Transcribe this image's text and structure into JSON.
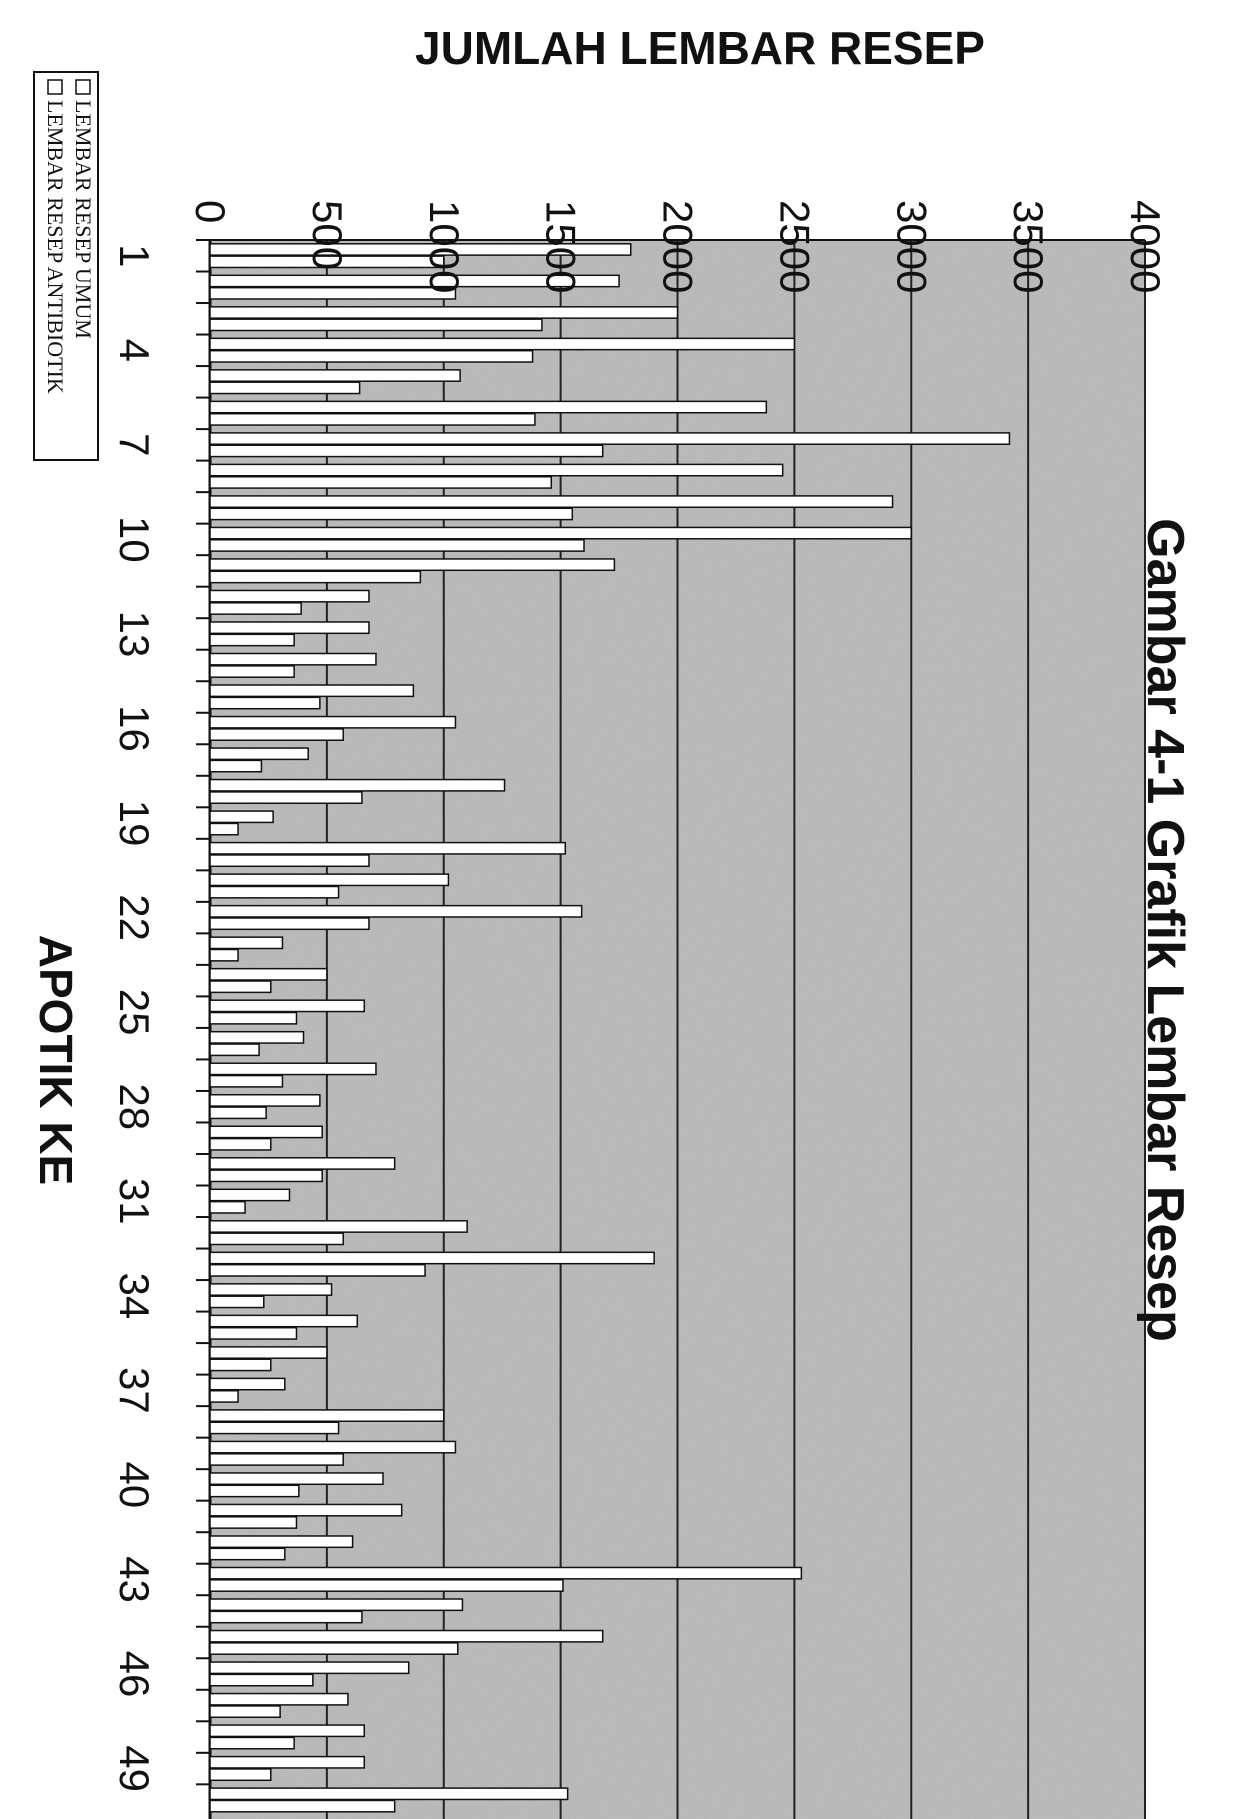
{
  "chart_data": {
    "type": "bar",
    "orientation": "vertical",
    "title": "Gambar 4-1 Grafik Lembar Resep",
    "xlabel": "APOTIK KE",
    "ylabel": "JUMLAH LEMBAR RESEP",
    "ylim": [
      0,
      4000
    ],
    "yticks": [
      "0",
      "500",
      "1000",
      "1500",
      "2000",
      "2500",
      "3000",
      "3500",
      "4000"
    ],
    "xtick_labels": [
      "1",
      "4",
      "7",
      "10",
      "13",
      "16",
      "19",
      "22",
      "25",
      "28",
      "31",
      "34",
      "37",
      "40",
      "43",
      "46",
      "49"
    ],
    "grid": true,
    "legend_position": "top-left",
    "categories": [
      "1",
      "2",
      "3",
      "4",
      "5",
      "6",
      "7",
      "8",
      "9",
      "10",
      "11",
      "12",
      "13",
      "14",
      "15",
      "16",
      "17",
      "18",
      "19",
      "20",
      "21",
      "22",
      "23",
      "24",
      "25",
      "26",
      "27",
      "28",
      "29",
      "30",
      "31",
      "32",
      "33",
      "34",
      "35",
      "36",
      "37",
      "38",
      "39",
      "40",
      "41",
      "42",
      "43",
      "44",
      "45",
      "46",
      "47",
      "48",
      "49",
      "50"
    ],
    "series": [
      {
        "name": "LEMBAR RESEP UMUM",
        "values": [
          1800,
          1750,
          2000,
          2500,
          1070,
          2380,
          3420,
          2450,
          2920,
          3000,
          1730,
          680,
          680,
          710,
          870,
          1050,
          420,
          1260,
          270,
          1520,
          1020,
          1590,
          310,
          500,
          660,
          400,
          710,
          470,
          480,
          790,
          340,
          1100,
          1900,
          520,
          630,
          500,
          320,
          1000,
          1050,
          740,
          820,
          610,
          2530,
          1080,
          1680,
          850,
          590,
          660,
          660,
          1530
        ]
      },
      {
        "name": "LEMBAR RESEP ANTIBIOTIK",
        "values": [
          1000,
          1050,
          1420,
          1380,
          640,
          1390,
          1680,
          1460,
          1550,
          1600,
          900,
          390,
          360,
          360,
          470,
          570,
          220,
          650,
          120,
          680,
          550,
          680,
          120,
          260,
          370,
          210,
          310,
          240,
          260,
          480,
          150,
          570,
          920,
          230,
          370,
          260,
          120,
          550,
          570,
          380,
          370,
          320,
          1510,
          650,
          1060,
          440,
          300,
          360,
          260,
          790
        ]
      }
    ],
    "colors": {
      "bar_fill": "#ffffff",
      "bar_stroke": "#111111",
      "grid": "#222222",
      "plot_bg": "#b9b9b9"
    }
  }
}
